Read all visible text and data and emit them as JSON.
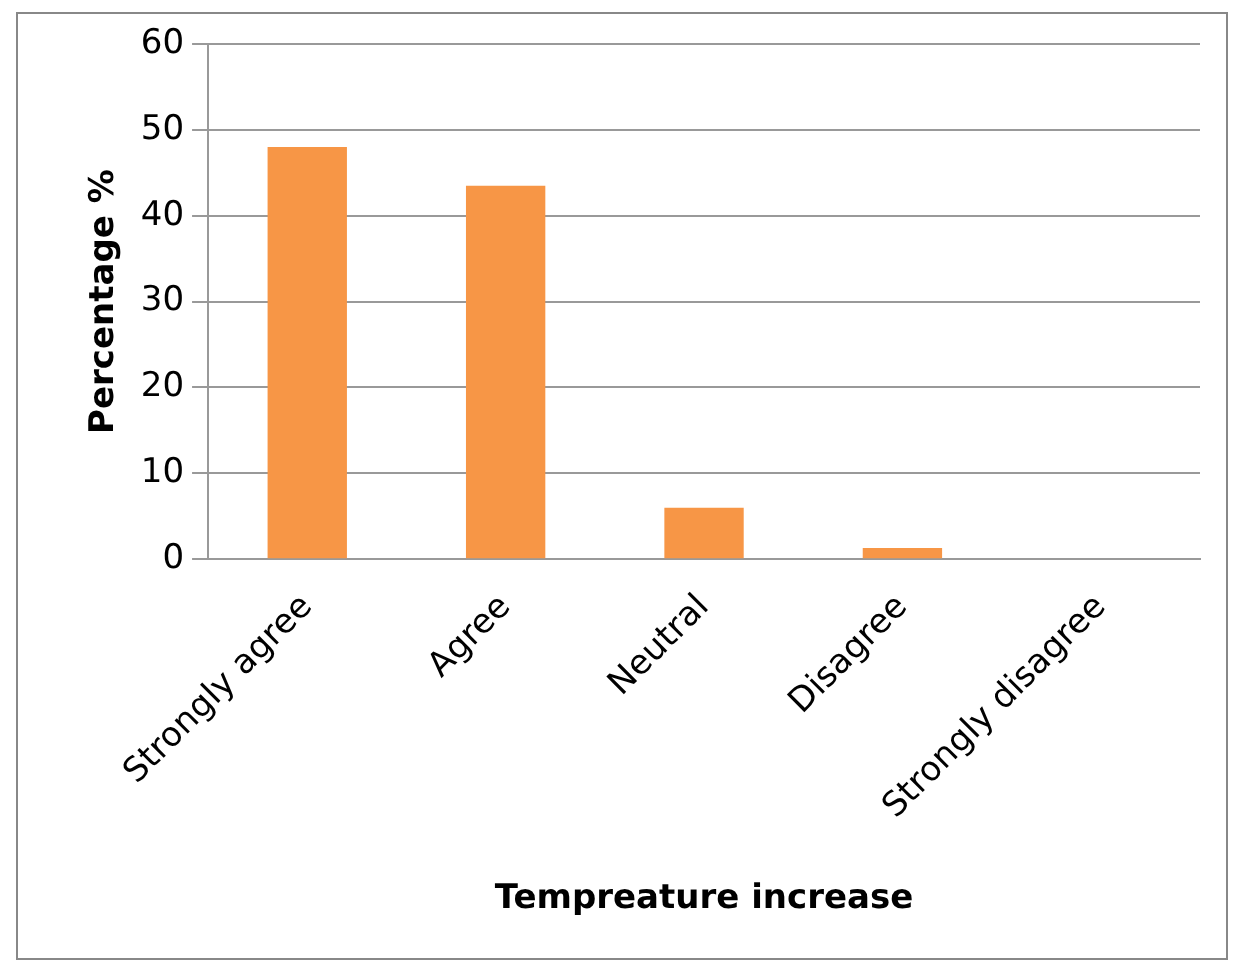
{
  "chart_data": {
    "type": "bar",
    "xlabel": "Tempreature increase",
    "ylabel": "Percentage %",
    "categories": [
      "Strongly agree",
      "Agree",
      "Neutral",
      "Disagree",
      "Strongly disagree"
    ],
    "values": [
      48,
      43.5,
      6,
      1.3,
      0
    ],
    "color": "#f79646",
    "ylim": [
      0,
      60
    ],
    "yticks": [
      0,
      10,
      20,
      30,
      40,
      50,
      60
    ],
    "grid": "y",
    "legend": false
  }
}
